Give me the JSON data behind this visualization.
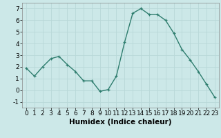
{
  "x": [
    0,
    1,
    2,
    3,
    4,
    5,
    6,
    7,
    8,
    9,
    10,
    11,
    12,
    13,
    14,
    15,
    16,
    17,
    18,
    19,
    20,
    21,
    22,
    23
  ],
  "y": [
    1.9,
    1.2,
    2.0,
    2.7,
    2.9,
    2.2,
    1.6,
    0.8,
    0.8,
    -0.1,
    0.05,
    1.2,
    4.1,
    6.6,
    7.0,
    6.5,
    6.5,
    6.0,
    4.9,
    3.5,
    2.6,
    1.6,
    0.5,
    -0.6
  ],
  "line_color": "#2e7d6e",
  "marker": "+",
  "marker_size": 3,
  "bg_color": "#cce8e8",
  "grid_color": "#b8d8d8",
  "xlabel": "Humidex (Indice chaleur)",
  "xlim": [
    -0.5,
    23.5
  ],
  "ylim": [
    -1.5,
    7.5
  ],
  "xticks": [
    0,
    1,
    2,
    3,
    4,
    5,
    6,
    7,
    8,
    9,
    10,
    11,
    12,
    13,
    14,
    15,
    16,
    17,
    18,
    19,
    20,
    21,
    22,
    23
  ],
  "yticks": [
    -1,
    0,
    1,
    2,
    3,
    4,
    5,
    6,
    7
  ],
  "font_size": 6.5,
  "xlabel_fontsize": 7.5
}
